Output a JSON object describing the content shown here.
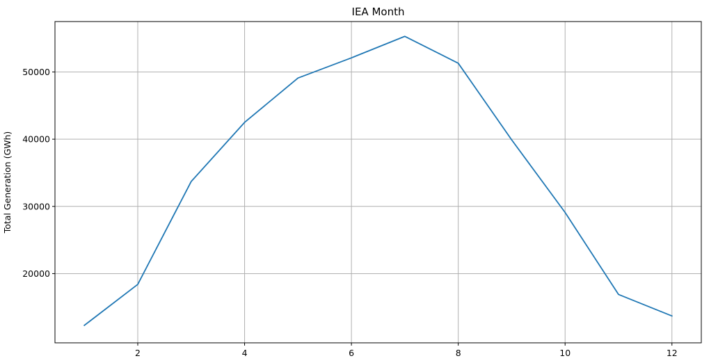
{
  "chart_data": {
    "type": "line",
    "title": "IEA Month",
    "xlabel": "",
    "ylabel": "Total Generation (GWh)",
    "x": [
      1,
      2,
      3,
      4,
      5,
      6,
      7,
      8,
      9,
      10,
      11,
      12
    ],
    "series": [
      {
        "values": [
          12300,
          18400,
          33700,
          42500,
          49100,
          52100,
          55300,
          51300,
          39900,
          29100,
          16900,
          13700
        ],
        "color": "#1f77b4"
      }
    ],
    "xlim": [
      0.45,
      12.55
    ],
    "ylim": [
      9700,
      57500
    ],
    "xticks": [
      2,
      4,
      6,
      8,
      10,
      12
    ],
    "xtick_labels": [
      "2",
      "4",
      "6",
      "8",
      "10",
      "12"
    ],
    "yticks": [
      20000,
      30000,
      40000,
      50000
    ],
    "ytick_labels": [
      "20000",
      "30000",
      "40000",
      "50000"
    ],
    "grid": true,
    "legend": "none",
    "colors": {
      "line": "#1f77b4",
      "grid": "#b0b0b0",
      "axes": "#000000",
      "background": "#ffffff"
    }
  }
}
